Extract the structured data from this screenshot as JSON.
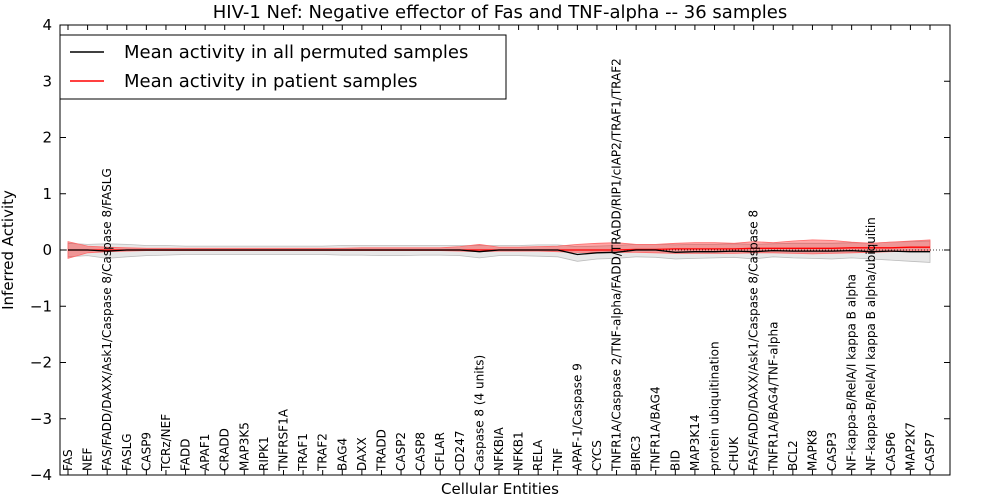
{
  "chart_data": {
    "type": "line",
    "title": "HIV-1 Nef: Negative effector of Fas and TNF-alpha -- 36 samples",
    "xlabel": "Cellular Entities",
    "ylabel": "Inferred Activity",
    "ylim": [
      -4,
      4
    ],
    "yticks": [
      4,
      3,
      2,
      1,
      0,
      -1,
      -2,
      -3,
      -4
    ],
    "ytick_labels": [
      "4",
      "3",
      "2",
      "1",
      "0",
      "−1",
      "−2",
      "−3",
      "−4"
    ],
    "legend_position": "top-left",
    "categories": [
      "FAS",
      "NEF",
      "FAS/FADD/DAXX/Ask1/Caspase 8/Caspase 8/FASLG",
      "FASLG",
      "CASP9",
      "TCRz/NEF",
      "FADD",
      "APAF1",
      "CRADD",
      "MAP3K5",
      "RIPK1",
      "TNFRSF1A",
      "TRAF1",
      "TRAF2",
      "BAG4",
      "DAXX",
      "TRADD",
      "CASP2",
      "CASP8",
      "CFLAR",
      "CD247",
      "Caspase 8 (4 units)",
      "NFKBIA",
      "NFKB1",
      "RELA",
      "TNF",
      "APAF-1/Caspase 9",
      "CYCS",
      "TNFR1A/Caspase 2/TNF-alpha/FADD/TRADD/RIP1/cIAP2/TRAF1/TRAF2",
      "BIRC3",
      "TNFR1A/BAG4",
      "BID",
      "MAP3K14",
      "protein ubiquitination",
      "CHUK",
      "FAS/FADD/DAXX/Ask1/Caspase 8/Caspase 8",
      "TNFR1A/BAG4/TNF-alpha",
      "BCL2",
      "MAPK8",
      "CASP3",
      "NF-kappa-B/RelA/I kappa B alpha",
      "NF-kappa-B/RelA/I kappa B alpha/ubiquitin",
      "CASP6",
      "MAP2K7",
      "CASP7"
    ],
    "series": [
      {
        "name": "Mean activity in all permuted samples",
        "color": "#000000",
        "values": [
          0,
          0,
          -0.02,
          0,
          0,
          0,
          0,
          0,
          0,
          0,
          0,
          0,
          0,
          0,
          0,
          0,
          0,
          0,
          0,
          0,
          0,
          -0.03,
          0,
          0,
          0,
          0,
          -0.08,
          -0.05,
          -0.04,
          0,
          0,
          -0.04,
          -0.03,
          -0.03,
          -0.02,
          -0.03,
          -0.01,
          -0.02,
          -0.02,
          -0.02,
          -0.01,
          -0.03,
          -0.02,
          -0.03,
          -0.03
        ],
        "band_low": [
          -0.12,
          -0.1,
          -0.15,
          -0.12,
          -0.1,
          -0.09,
          -0.08,
          -0.08,
          -0.08,
          -0.08,
          -0.08,
          -0.08,
          -0.08,
          -0.08,
          -0.09,
          -0.09,
          -0.1,
          -0.1,
          -0.09,
          -0.09,
          -0.1,
          -0.14,
          -0.1,
          -0.1,
          -0.11,
          -0.12,
          -0.2,
          -0.16,
          -0.15,
          -0.12,
          -0.13,
          -0.16,
          -0.15,
          -0.14,
          -0.13,
          -0.16,
          -0.12,
          -0.14,
          -0.15,
          -0.16,
          -0.14,
          -0.16,
          -0.18,
          -0.2,
          -0.22
        ],
        "band_high": [
          0.12,
          0.1,
          0.11,
          0.1,
          0.08,
          0.08,
          0.07,
          0.07,
          0.07,
          0.07,
          0.07,
          0.07,
          0.07,
          0.07,
          0.08,
          0.08,
          0.08,
          0.08,
          0.08,
          0.08,
          0.08,
          0.08,
          0.08,
          0.08,
          0.09,
          0.09,
          0.06,
          0.07,
          0.08,
          0.1,
          0.1,
          0.09,
          0.1,
          0.1,
          0.11,
          0.1,
          0.11,
          0.12,
          0.12,
          0.12,
          0.13,
          0.12,
          0.14,
          0.15,
          0.16
        ]
      },
      {
        "name": "Mean activity in patient samples",
        "color": "#ff0000",
        "values": [
          0,
          0,
          0,
          0,
          0,
          0,
          0,
          0,
          0,
          0,
          0,
          0,
          0,
          0,
          0,
          0,
          0,
          0,
          0,
          0,
          0,
          0,
          0,
          0,
          0,
          0,
          0,
          0,
          0,
          0.01,
          0.01,
          0.02,
          0.02,
          0.02,
          0.02,
          0.03,
          0.03,
          0.03,
          0.03,
          0.03,
          0.04,
          0.04,
          0.04,
          0.05,
          0.05
        ],
        "band_low": [
          -0.15,
          -0.05,
          -0.03,
          -0.02,
          -0.01,
          -0.01,
          -0.01,
          -0.01,
          -0.01,
          -0.01,
          -0.01,
          -0.01,
          -0.01,
          -0.01,
          -0.01,
          -0.01,
          -0.01,
          -0.01,
          -0.01,
          -0.01,
          -0.02,
          -0.03,
          -0.02,
          -0.02,
          -0.02,
          -0.03,
          -0.04,
          -0.04,
          -0.04,
          -0.04,
          -0.05,
          -0.06,
          -0.06,
          -0.06,
          -0.06,
          -0.05,
          -0.05,
          -0.06,
          -0.07,
          -0.06,
          -0.05,
          -0.04,
          -0.03,
          -0.02,
          -0.02
        ],
        "band_high": [
          0.15,
          0.07,
          0.05,
          0.04,
          0.03,
          0.03,
          0.03,
          0.03,
          0.03,
          0.03,
          0.03,
          0.03,
          0.03,
          0.03,
          0.03,
          0.04,
          0.04,
          0.04,
          0.04,
          0.04,
          0.06,
          0.1,
          0.05,
          0.05,
          0.06,
          0.07,
          0.1,
          0.12,
          0.13,
          0.1,
          0.1,
          0.12,
          0.13,
          0.13,
          0.12,
          0.15,
          0.13,
          0.16,
          0.18,
          0.17,
          0.14,
          0.12,
          0.14,
          0.16,
          0.18
        ]
      }
    ]
  }
}
